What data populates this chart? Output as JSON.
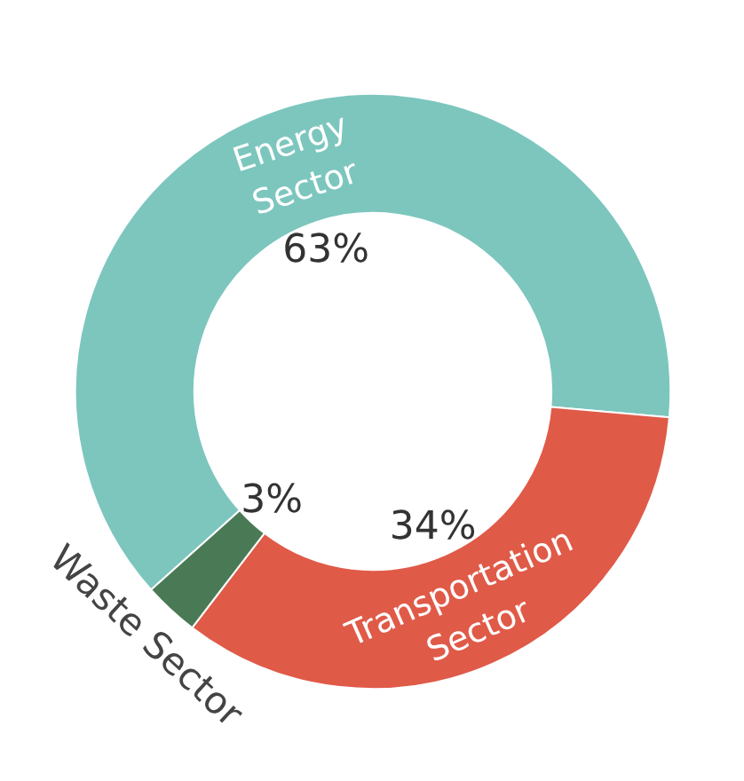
{
  "chart_data": {
    "type": "donut",
    "categories": [
      "Energy Sector",
      "Transportation Sector",
      "Waste Sector"
    ],
    "values": [
      63,
      34,
      3
    ],
    "colors": [
      "#7cc6be",
      "#e05a48",
      "#4a7a55"
    ],
    "value_labels": [
      "63%",
      "34%",
      "3%"
    ]
  }
}
